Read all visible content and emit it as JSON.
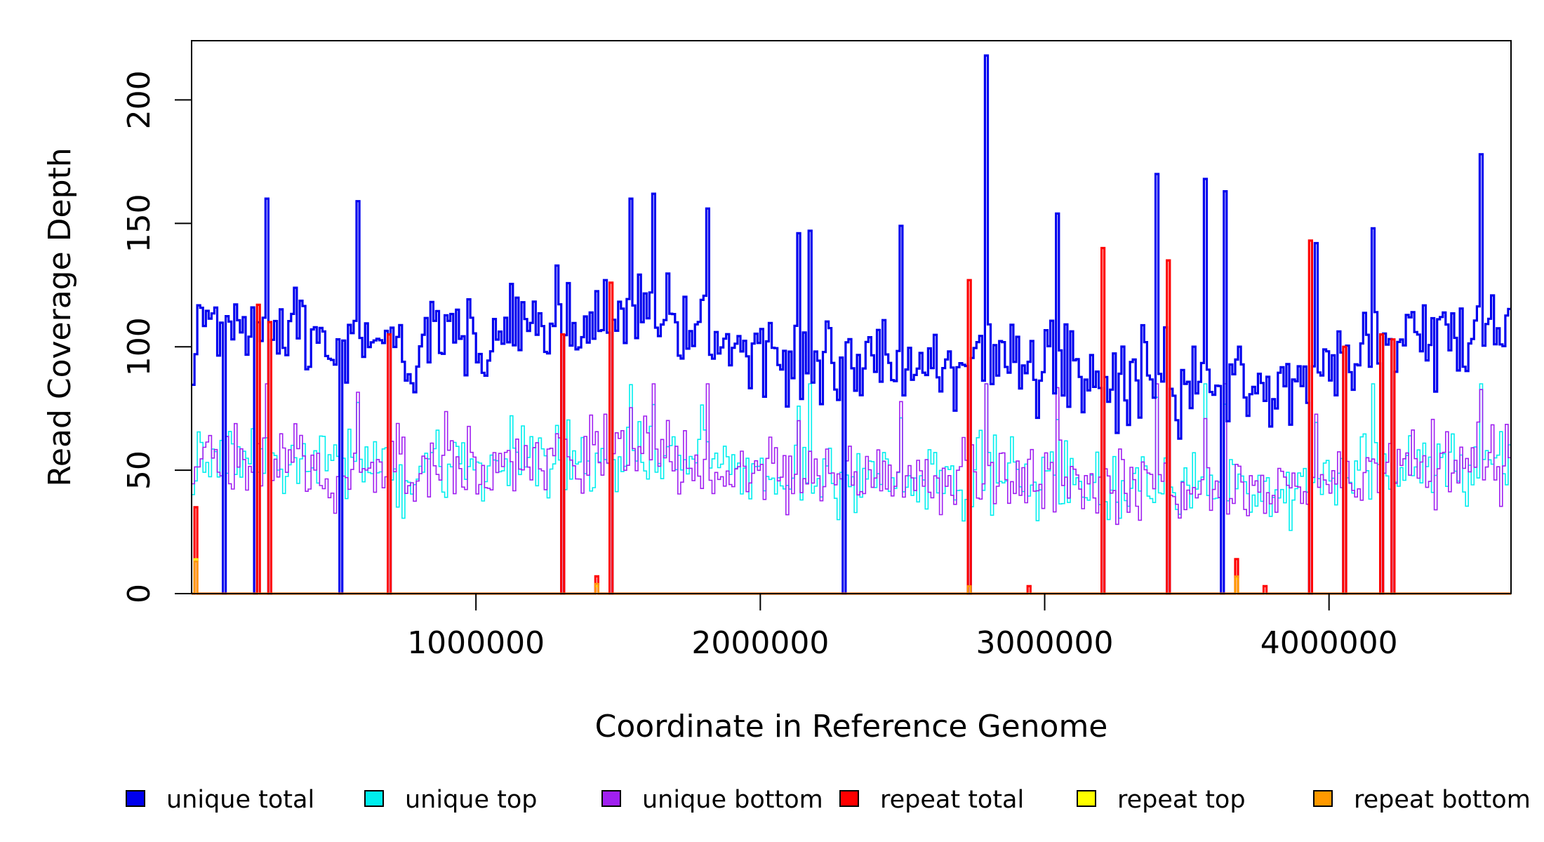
{
  "chart_data": {
    "type": "line",
    "title": "",
    "xlabel": "Coordinate in Reference Genome",
    "ylabel": "Read Coverage Depth",
    "xlim": [
      0,
      4640000
    ],
    "ylim": [
      0,
      224
    ],
    "x_ticks": [
      1000000,
      2000000,
      3000000,
      4000000
    ],
    "x_tick_labels": [
      "1000000",
      "2000000",
      "3000000",
      "4000000"
    ],
    "y_ticks": [
      0,
      50,
      100,
      150,
      200
    ],
    "y_tick_labels": [
      "0",
      "50",
      "100",
      "150",
      "200"
    ],
    "grid": false,
    "legend_position": "bottom",
    "series": [
      {
        "name": "unique total",
        "color": "#0000ee",
        "bin_size": 10000,
        "dropouts_x": [
          110000,
          220000,
          270000,
          520000,
          685000,
          1300000,
          1465000,
          2290000,
          2730000,
          3200000,
          3425000,
          3615000,
          3930000,
          4045000,
          4175000,
          4215000
        ],
        "peaks": [
          [
            10000,
            97
          ],
          [
            260000,
            160
          ],
          [
            580000,
            159
          ],
          [
            1450000,
            127
          ],
          [
            1540000,
            160
          ],
          [
            1620000,
            162
          ],
          [
            1810000,
            156
          ],
          [
            2130000,
            146
          ],
          [
            2170000,
            147
          ],
          [
            2490000,
            149
          ],
          [
            2790000,
            218
          ],
          [
            3040000,
            154
          ],
          [
            3390000,
            170
          ],
          [
            3560000,
            168
          ],
          [
            3630000,
            163
          ],
          [
            3950000,
            142
          ],
          [
            4150000,
            148
          ],
          [
            4530000,
            178
          ]
        ]
      },
      {
        "name": "unique top",
        "color": "#00eeee",
        "bin_size": 10000
      },
      {
        "name": "unique bottom",
        "color": "#a020f0",
        "bin_size": 10000
      },
      {
        "name": "repeat total",
        "color": "#ff0000",
        "bin_size": 10000,
        "peaks": [
          [
            10000,
            35
          ],
          [
            230000,
            117
          ],
          [
            270000,
            110
          ],
          [
            685000,
            105
          ],
          [
            1300000,
            105
          ],
          [
            1420000,
            7
          ],
          [
            1465000,
            126
          ],
          [
            2730000,
            127
          ],
          [
            2940000,
            3
          ],
          [
            3200000,
            140
          ],
          [
            3425000,
            135
          ],
          [
            3670000,
            14
          ],
          [
            3770000,
            3
          ],
          [
            3930000,
            143
          ],
          [
            4045000,
            100
          ],
          [
            4175000,
            105
          ],
          [
            4215000,
            103
          ]
        ]
      },
      {
        "name": "repeat top",
        "color": "#ffff00",
        "bin_size": 10000,
        "peaks": [
          [
            10000,
            14
          ],
          [
            1420000,
            3
          ],
          [
            3670000,
            6
          ]
        ]
      },
      {
        "name": "repeat bottom",
        "color": "#ff9900",
        "bin_size": 10000,
        "peaks": [
          [
            10000,
            13
          ],
          [
            1420000,
            4
          ],
          [
            2730000,
            3
          ],
          [
            3670000,
            7
          ]
        ]
      }
    ]
  }
}
